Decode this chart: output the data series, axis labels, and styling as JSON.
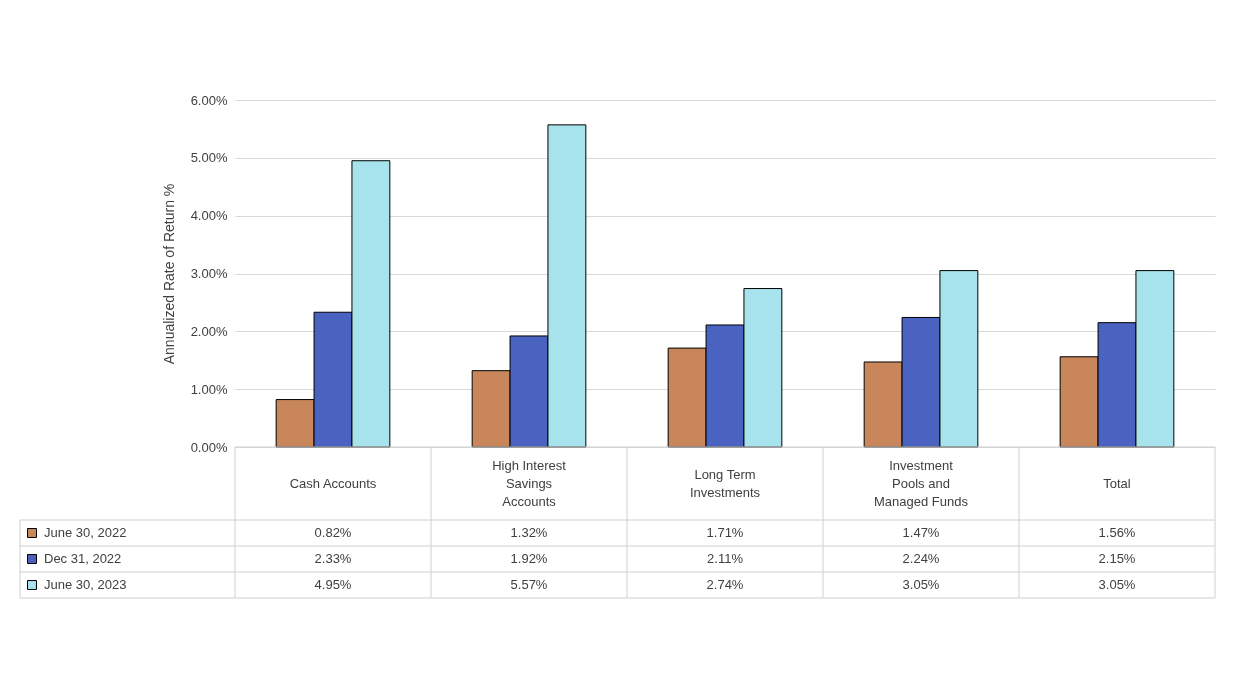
{
  "chart_data": {
    "type": "bar",
    "ylabel": "Annualized Rate of Return %",
    "categories": [
      "Cash Accounts",
      "High Interest Savings Accounts",
      "Long Term Investments",
      "Investment Pools and Managed Funds",
      "Total"
    ],
    "ylim": [
      0,
      6
    ],
    "yticks": [
      {
        "value": 0,
        "label": "0.00%"
      },
      {
        "value": 1,
        "label": "1.00%"
      },
      {
        "value": 2,
        "label": "2.00%"
      },
      {
        "value": 3,
        "label": "3.00%"
      },
      {
        "value": 4,
        "label": "4.00%"
      },
      {
        "value": 5,
        "label": "5.00%"
      },
      {
        "value": 6,
        "label": "6.00%"
      }
    ],
    "grid": "y",
    "legend": "bottom left",
    "series": [
      {
        "name": "June 30, 2022",
        "color": "#c8865a",
        "values": [
          0.82,
          1.32,
          1.71,
          1.47,
          1.56
        ],
        "value_labels": [
          "0.82%",
          "1.32%",
          "1.71%",
          "1.47%",
          "1.56%"
        ]
      },
      {
        "name": "Dec 31, 2022",
        "color": "#4a62c0",
        "values": [
          2.33,
          1.92,
          2.11,
          2.24,
          2.15
        ],
        "value_labels": [
          "2.33%",
          "1.92%",
          "2.11%",
          "2.24%",
          "2.15%"
        ]
      },
      {
        "name": "June 30, 2023",
        "color": "#a6e3ec",
        "values": [
          4.95,
          5.57,
          2.74,
          3.05,
          3.05
        ],
        "value_labels": [
          "4.95%",
          "5.57%",
          "2.74%",
          "3.05%",
          "3.05%"
        ]
      }
    ]
  }
}
